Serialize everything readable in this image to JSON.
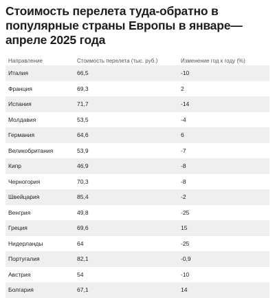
{
  "title": "Стоимость перелета туда-обратно в популярные страны Европы в январе—апреле 2025 года",
  "table": {
    "headers": [
      "Направление",
      "Стоимость перелета (тыс. руб.)",
      "Изменение год к году (%)"
    ],
    "rows": [
      [
        "Италия",
        "66,5",
        "-10"
      ],
      [
        "Франция",
        "69,3",
        "2"
      ],
      [
        "Испания",
        "71,7",
        "-14"
      ],
      [
        "Молдавия",
        "53,5",
        "-4"
      ],
      [
        "Германия",
        "64,6",
        "6"
      ],
      [
        "Великобритания",
        "53,9",
        "-7"
      ],
      [
        "Кипр",
        "46,9",
        "-8"
      ],
      [
        "Черногория",
        "70,3",
        "-8"
      ],
      [
        "Швейцария",
        "85,4",
        "-2"
      ],
      [
        "Венгрия",
        "49,8",
        "-25"
      ],
      [
        "Греция",
        "69,6",
        "15"
      ],
      [
        "Нидерланды",
        "64",
        "-25"
      ],
      [
        "Португалия",
        "82,1",
        "-0,9"
      ],
      [
        "Австрия",
        "54",
        "-10"
      ],
      [
        "Болгария",
        "67,1",
        "14"
      ]
    ]
  }
}
